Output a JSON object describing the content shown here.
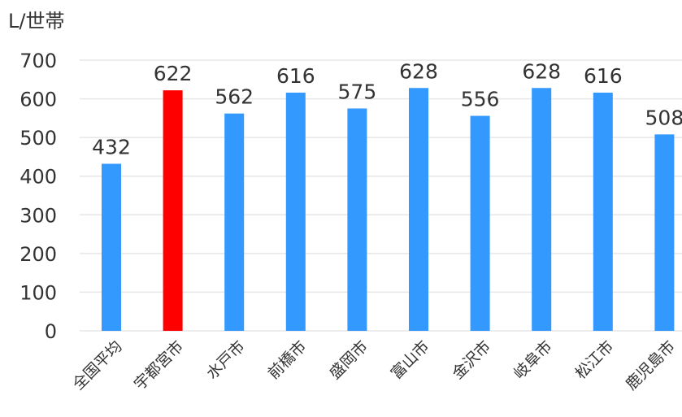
{
  "chart_data": {
    "type": "bar",
    "title": "",
    "xlabel": "",
    "ylabel": "L/世帯",
    "categories": [
      "全国平均",
      "宇都宮市",
      "水戸市",
      "前橋市",
      "盛岡市",
      "富山市",
      "金沢市",
      "岐阜市",
      "松江市",
      "鹿児島市"
    ],
    "values": [
      432,
      622,
      562,
      616,
      575,
      628,
      556,
      628,
      616,
      508
    ],
    "bar_colors": [
      "#3399ff",
      "#ff0000",
      "#3399ff",
      "#3399ff",
      "#3399ff",
      "#3399ff",
      "#3399ff",
      "#3399ff",
      "#3399ff",
      "#3399ff"
    ],
    "ylim": [
      0,
      700
    ],
    "yticks": [
      0,
      100,
      200,
      300,
      400,
      500,
      600,
      700
    ],
    "grid": true,
    "legend": "none",
    "data_labels": true,
    "tick_label_rotation": -45
  },
  "colors": {
    "bar": "#3399ff",
    "highlight": "#ff0000",
    "grid": "#e6e6e6",
    "text": "#333333"
  }
}
